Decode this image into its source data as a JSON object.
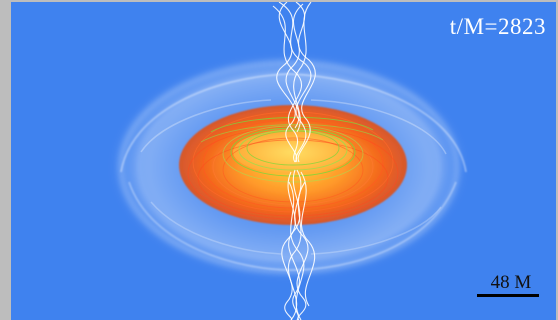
{
  "overlay": {
    "time_label": "t/M=2823",
    "scale_label": "48 M"
  },
  "colors": {
    "background": "#3f82ef",
    "frame": "#bdbdbd",
    "torus_outer": "#f0781e",
    "torus_inner": "#ffd23a",
    "field_lines_disk": "#7dd63a",
    "jet_field_lines": "#ffffff",
    "halo": "#ffffff"
  }
}
